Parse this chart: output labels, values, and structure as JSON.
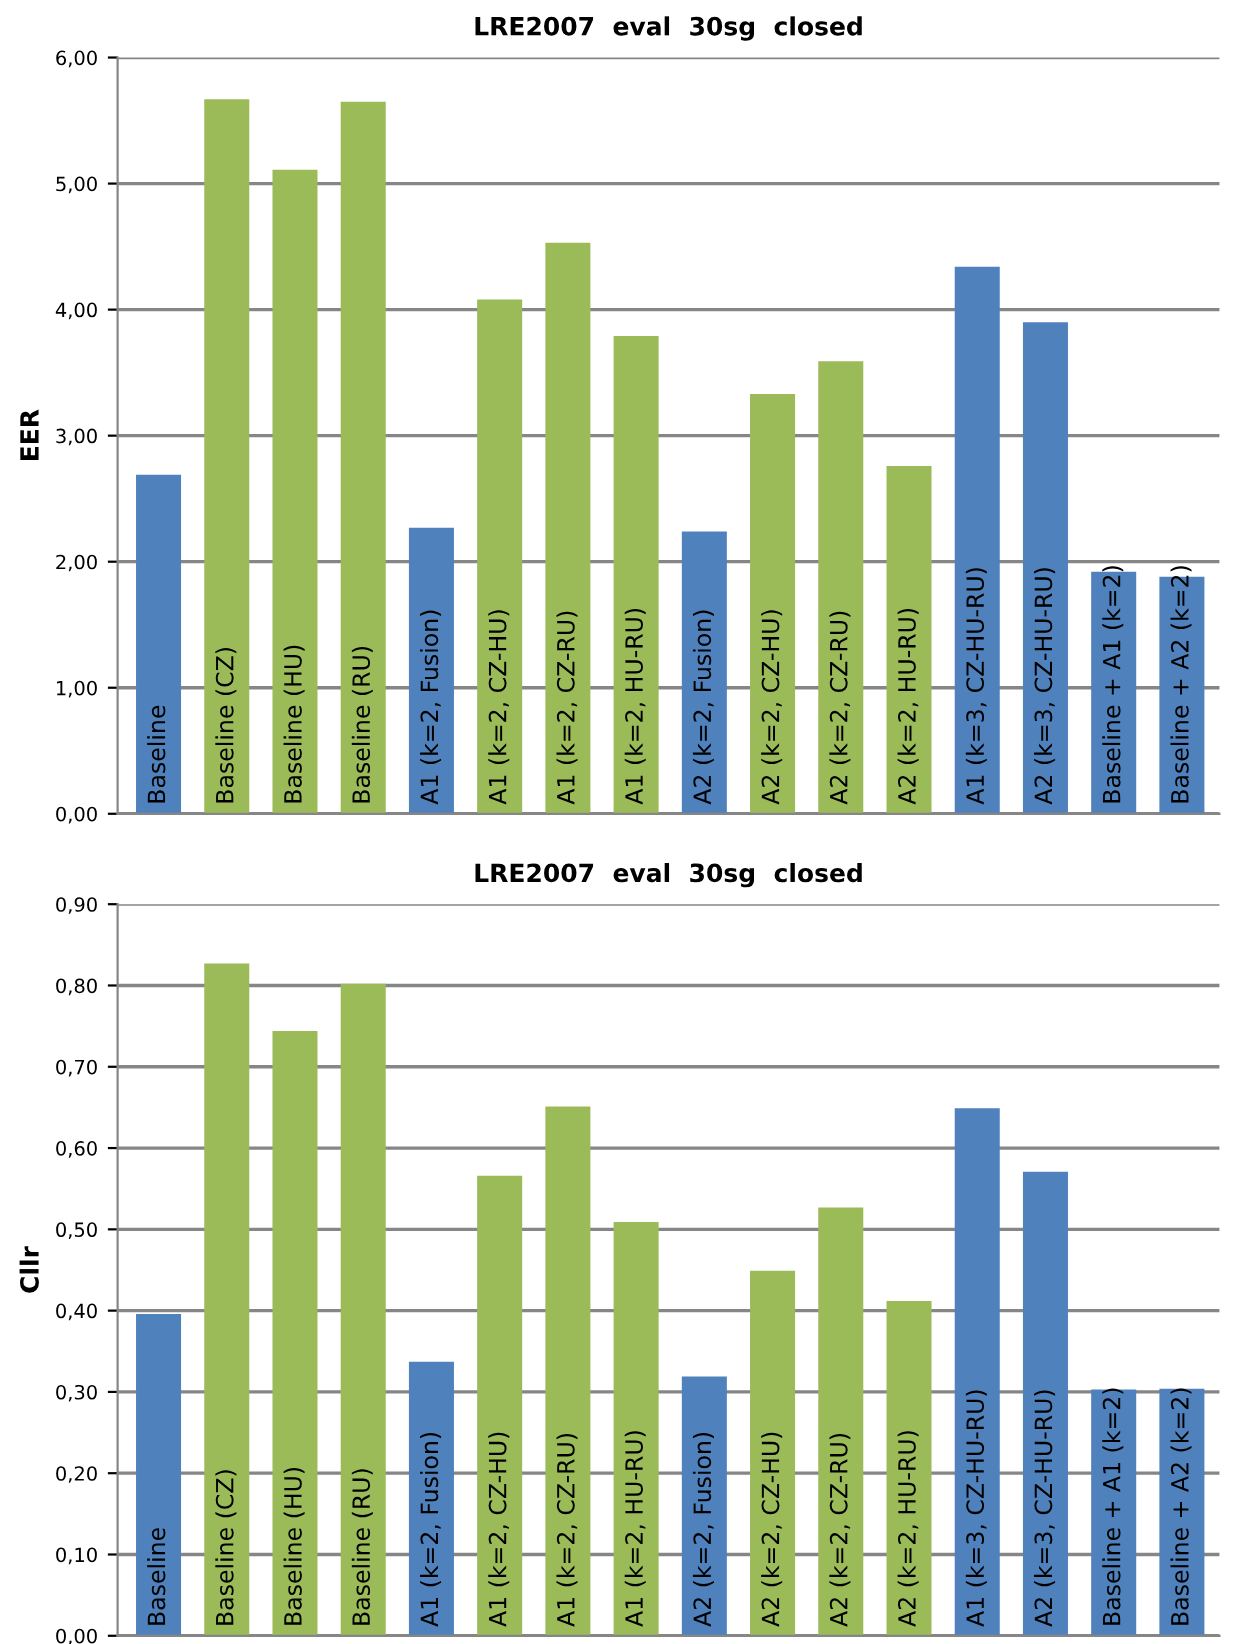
{
  "chart_data": [
    {
      "type": "bar",
      "title": "LRE2007  eval  30sg  closed",
      "ylabel": "EER",
      "categories": [
        "Baseline",
        "Baseline (CZ)",
        "Baseline (HU)",
        "Baseline (RU)",
        "A1 (k=2, Fusion)",
        "A1 (k=2, CZ-HU)",
        "A1 (k=2, CZ-RU)",
        "A1 (k=2, HU-RU)",
        "A2 (k=2, Fusion)",
        "A2 (k=2, CZ-HU)",
        "A2 (k=2, CZ-RU)",
        "A2 (k=2, HU-RU)",
        "A1 (k=3, CZ-HU-RU)",
        "A2 (k=3, CZ-HU-RU)",
        "Baseline + A1 (k=2)",
        "Baseline + A2 (k=2)"
      ],
      "values": [
        2.69,
        5.67,
        5.11,
        5.65,
        2.27,
        4.08,
        4.53,
        3.79,
        2.24,
        3.33,
        3.59,
        2.76,
        4.34,
        3.9,
        1.92,
        1.88
      ],
      "colors": [
        "#4f81bd",
        "#9bbb59",
        "#9bbb59",
        "#9bbb59",
        "#4f81bd",
        "#9bbb59",
        "#9bbb59",
        "#9bbb59",
        "#4f81bd",
        "#9bbb59",
        "#9bbb59",
        "#9bbb59",
        "#4f81bd",
        "#4f81bd",
        "#4f81bd",
        "#4f81bd"
      ],
      "ylim": [
        0,
        6
      ],
      "yticks": [
        {
          "value": 0,
          "label": "0,00"
        },
        {
          "value": 1,
          "label": "1,00"
        },
        {
          "value": 2,
          "label": "2,00"
        },
        {
          "value": 3,
          "label": "3,00"
        },
        {
          "value": 4,
          "label": "4,00"
        },
        {
          "value": 5,
          "label": "5,00"
        },
        {
          "value": 6,
          "label": "6,00"
        }
      ],
      "grid": "y"
    },
    {
      "type": "bar",
      "title": "LRE2007  eval  30sg  closed",
      "ylabel": "Cllr",
      "categories": [
        "Baseline",
        "Baseline (CZ)",
        "Baseline (HU)",
        "Baseline (RU)",
        "A1 (k=2, Fusion)",
        "A1 (k=2, CZ-HU)",
        "A1 (k=2, CZ-RU)",
        "A1 (k=2, HU-RU)",
        "A2 (k=2, Fusion)",
        "A2 (k=2, CZ-HU)",
        "A2 (k=2, CZ-RU)",
        "A2 (k=2, HU-RU)",
        "A1 (k=3, CZ-HU-RU)",
        "A2 (k=3, CZ-HU-RU)",
        "Baseline + A1 (k=2)",
        "Baseline + A2 (k=2)"
      ],
      "values": [
        0.396,
        0.827,
        0.744,
        0.802,
        0.337,
        0.566,
        0.651,
        0.509,
        0.319,
        0.449,
        0.527,
        0.412,
        0.649,
        0.571,
        0.303,
        0.304
      ],
      "colors": [
        "#4f81bd",
        "#9bbb59",
        "#9bbb59",
        "#9bbb59",
        "#4f81bd",
        "#9bbb59",
        "#9bbb59",
        "#9bbb59",
        "#4f81bd",
        "#9bbb59",
        "#9bbb59",
        "#9bbb59",
        "#4f81bd",
        "#4f81bd",
        "#4f81bd",
        "#4f81bd"
      ],
      "ylim": [
        0,
        0.9
      ],
      "yticks": [
        {
          "value": 0,
          "label": "0,00"
        },
        {
          "value": 0.1,
          "label": "0,10"
        },
        {
          "value": 0.2,
          "label": "0,20"
        },
        {
          "value": 0.3,
          "label": "0,30"
        },
        {
          "value": 0.4,
          "label": "0,40"
        },
        {
          "value": 0.5,
          "label": "0,50"
        },
        {
          "value": 0.6,
          "label": "0,60"
        },
        {
          "value": 0.7,
          "label": "0,70"
        },
        {
          "value": 0.8,
          "label": "0,80"
        },
        {
          "value": 0.9,
          "label": "0,90"
        }
      ],
      "grid": "y"
    }
  ]
}
